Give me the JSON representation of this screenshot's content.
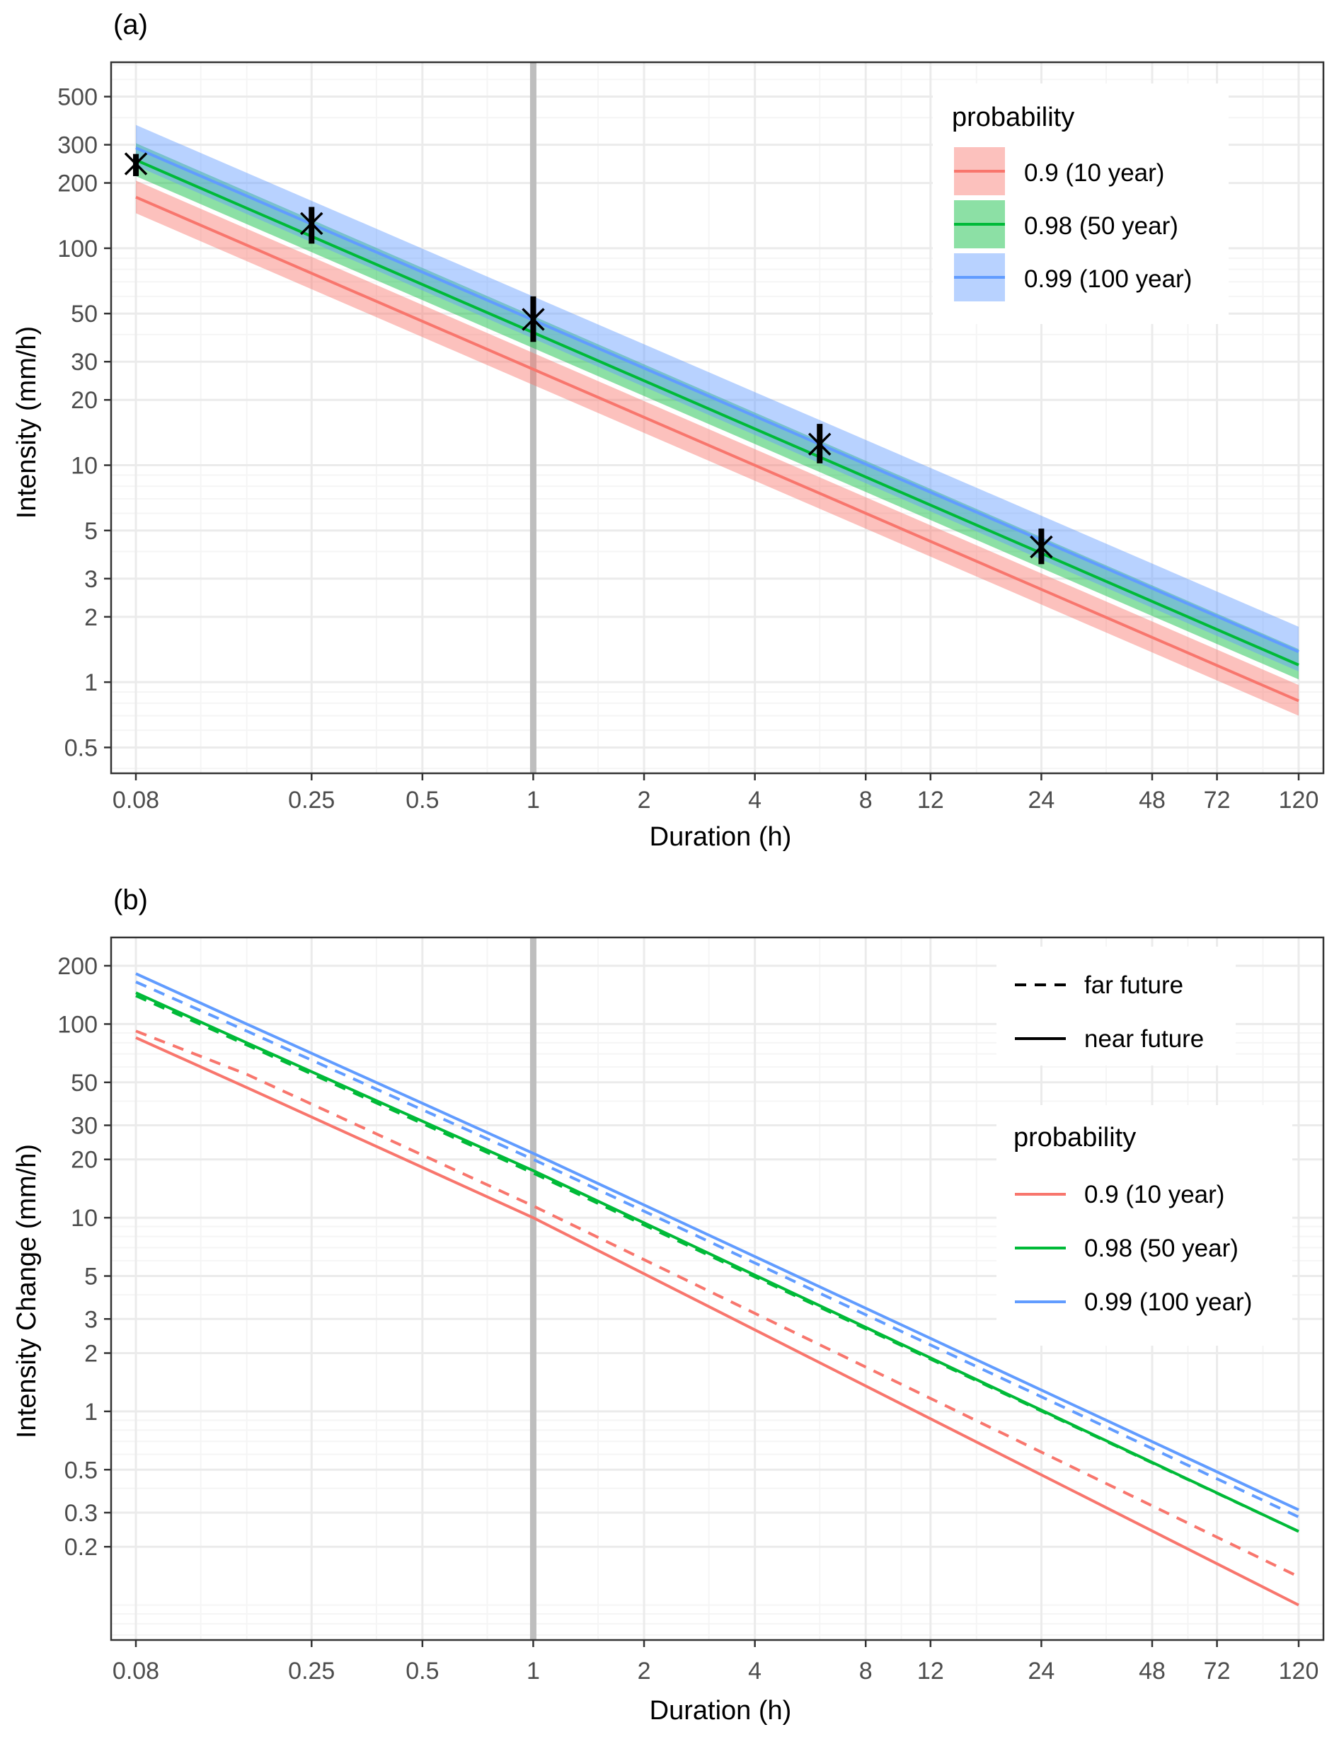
{
  "colors": {
    "red": "#F8766D",
    "green": "#00BA38",
    "blue": "#619CFF",
    "grid_major": "#ebebeb",
    "grid_minor": "#f5f5f5",
    "vline": "#bebebe",
    "panel_border": "#333333",
    "axis_text": "#4d4d4d"
  },
  "chart_data": [
    {
      "panel_label": "(a)",
      "type": "line",
      "xlabel": "Duration (h)",
      "ylabel": "Intensity (mm/h)",
      "x_scale": "log",
      "y_scale": "log",
      "xlim": [
        0.0833,
        120
      ],
      "ylim": [
        0.38,
        720
      ],
      "x_ticks": [
        0.0833,
        0.25,
        0.5,
        1,
        2,
        4,
        8,
        12,
        24,
        48,
        72,
        120
      ],
      "x_tick_labels": [
        "0.08",
        "0.25",
        "0.5",
        "1",
        "2",
        "4",
        "8",
        "12",
        "24",
        "48",
        "72",
        "120"
      ],
      "y_ticks": [
        0.5,
        1,
        2,
        3,
        5,
        10,
        20,
        30,
        50,
        100,
        200,
        300,
        500
      ],
      "y_tick_labels": [
        "0.5",
        "1",
        "2",
        "3",
        "5",
        "10",
        "20",
        "30",
        "50",
        "100",
        "200",
        "300",
        "500"
      ],
      "vline_x": 1,
      "legend": {
        "title": "probability",
        "position": "top-right"
      },
      "series": [
        {
          "name": "0.9 (10 year)",
          "color": "#F8766D",
          "x": [
            0.0833,
            120
          ],
          "y": [
            172,
            0.82
          ],
          "ymin": [
            145,
            0.7
          ],
          "ymax": [
            205,
            0.97
          ]
        },
        {
          "name": "0.98 (50 year)",
          "color": "#00BA38",
          "x": [
            0.0833,
            120
          ],
          "y": [
            255,
            1.2
          ],
          "ymin": [
            215,
            1.03
          ],
          "ymax": [
            305,
            1.42
          ]
        },
        {
          "name": "0.99 (100 year)",
          "color": "#619CFF",
          "x": [
            0.0833,
            120
          ],
          "y": [
            290,
            1.38
          ],
          "ymin": [
            240,
            1.12
          ],
          "ymax": [
            370,
            1.8
          ]
        }
      ],
      "observations": {
        "x": [
          0.0833,
          0.25,
          1,
          6,
          24
        ],
        "y": [
          245,
          130,
          47,
          12.5,
          4.2
        ],
        "ymin": [
          215,
          105,
          37,
          10.2,
          3.5
        ],
        "ymax": [
          272,
          155,
          60,
          15.5,
          5.1
        ]
      }
    },
    {
      "panel_label": "(b)",
      "type": "line",
      "xlabel": "Duration (h)",
      "ylabel": "Intensity Change (mm/h)",
      "x_scale": "log",
      "y_scale": "log",
      "xlim": [
        0.0833,
        120
      ],
      "ylim": [
        0.066,
        280
      ],
      "x_ticks": [
        0.0833,
        0.25,
        0.5,
        1,
        2,
        4,
        8,
        12,
        24,
        48,
        72,
        120
      ],
      "x_tick_labels": [
        "0.08",
        "0.25",
        "0.5",
        "1",
        "2",
        "4",
        "8",
        "12",
        "24",
        "48",
        "72",
        "120"
      ],
      "y_ticks": [
        0.2,
        0.3,
        0.5,
        1,
        2,
        3,
        5,
        10,
        20,
        30,
        50,
        100,
        200
      ],
      "y_tick_labels": [
        "0.2",
        "0.3",
        "0.5",
        "1",
        "2",
        "3",
        "5",
        "10",
        "20",
        "30",
        "50",
        "100",
        "200"
      ],
      "vline_x": 1,
      "legend_linetype": {
        "position": "top-right",
        "entries": [
          {
            "label": "far future",
            "dash": "dashed"
          },
          {
            "label": "near future",
            "dash": "solid"
          }
        ]
      },
      "legend": {
        "title": "probability",
        "position": "right"
      },
      "series": [
        {
          "name": "0.9 (10 year)",
          "period": "near future",
          "dash": "solid",
          "color": "#F8766D",
          "x": [
            0.0833,
            0.1667,
            1,
            120
          ],
          "y": [
            85,
            47,
            10,
            0.1
          ]
        },
        {
          "name": "0.9 (10 year)",
          "period": "far future",
          "dash": "dashed",
          "color": "#F8766D",
          "x": [
            0.0833,
            0.1667,
            1,
            120
          ],
          "y": [
            92,
            55,
            11.5,
            0.14
          ]
        },
        {
          "name": "0.98 (50 year)",
          "period": "near future",
          "dash": "solid",
          "color": "#00BA38",
          "x": [
            0.0833,
            0.1667,
            1,
            120
          ],
          "y": [
            145,
            80,
            17.5,
            0.24
          ]
        },
        {
          "name": "0.98 (50 year)",
          "period": "far future",
          "dash": "dashed",
          "color": "#00BA38",
          "x": [
            0.0833,
            0.1667,
            1,
            120
          ],
          "y": [
            140,
            78,
            17,
            0.24
          ]
        },
        {
          "name": "0.99 (100 year)",
          "period": "near future",
          "dash": "solid",
          "color": "#619CFF",
          "x": [
            0.0833,
            0.1667,
            1,
            120
          ],
          "y": [
            182,
            100,
            21.5,
            0.31
          ]
        },
        {
          "name": "0.99 (100 year)",
          "period": "far future",
          "dash": "dashed",
          "color": "#619CFF",
          "x": [
            0.0833,
            0.1667,
            1,
            120
          ],
          "y": [
            165,
            92,
            20,
            0.285
          ]
        }
      ]
    }
  ]
}
